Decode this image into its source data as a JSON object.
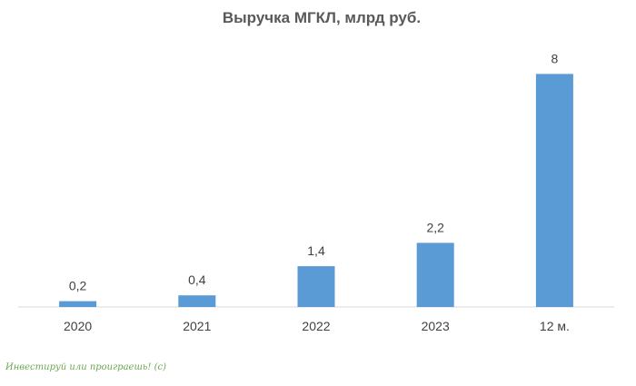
{
  "chart_data": {
    "type": "bar",
    "title": "Выручка МГКЛ, млрд руб.",
    "xlabel": "",
    "ylabel": "",
    "categories": [
      "2020",
      "2021",
      "2022",
      "2023",
      "12 м."
    ],
    "values": [
      0.2,
      0.4,
      1.4,
      2.2,
      8
    ],
    "data_labels": [
      "0,2",
      "0,4",
      "1,4",
      "2,2",
      "8"
    ],
    "ylim": [
      0,
      8.2
    ],
    "grid": false,
    "legend": "none",
    "bar_color": "#5b9bd5"
  },
  "watermark": {
    "text": "Инвестируй или проиграешь! (с)",
    "color": "#6aa84f"
  }
}
